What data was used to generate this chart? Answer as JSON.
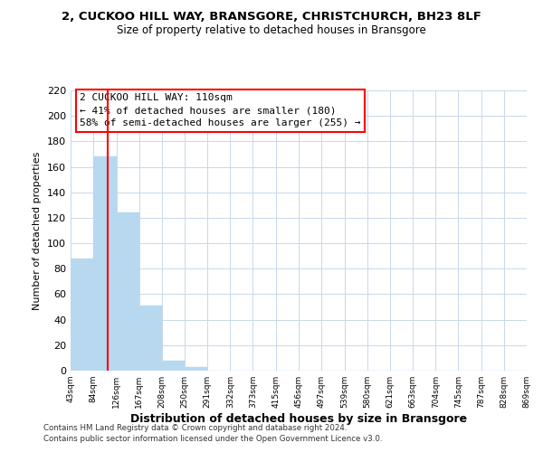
{
  "title": "2, CUCKOO HILL WAY, BRANSGORE, CHRISTCHURCH, BH23 8LF",
  "subtitle": "Size of property relative to detached houses in Bransgore",
  "xlabel": "Distribution of detached houses by size in Bransgore",
  "ylabel": "Number of detached properties",
  "bar_edges": [
    43,
    84,
    126,
    167,
    208,
    250,
    291,
    332,
    373,
    415,
    456,
    497,
    539,
    580,
    621,
    663,
    704,
    745,
    787,
    828,
    869
  ],
  "bar_heights": [
    88,
    168,
    124,
    51,
    8,
    3,
    0,
    0,
    0,
    0,
    0,
    0,
    0,
    0,
    0,
    0,
    0,
    0,
    0,
    0
  ],
  "bar_color": "#b8d8f0",
  "bar_edge_color": "#b8d8f0",
  "property_line_x": 110,
  "property_line_color": "red",
  "ylim": [
    0,
    220
  ],
  "yticks": [
    0,
    20,
    40,
    60,
    80,
    100,
    120,
    140,
    160,
    180,
    200,
    220
  ],
  "xtick_labels": [
    "43sqm",
    "84sqm",
    "126sqm",
    "167sqm",
    "208sqm",
    "250sqm",
    "291sqm",
    "332sqm",
    "373sqm",
    "415sqm",
    "456sqm",
    "497sqm",
    "539sqm",
    "580sqm",
    "621sqm",
    "663sqm",
    "704sqm",
    "745sqm",
    "787sqm",
    "828sqm",
    "869sqm"
  ],
  "annotation_title": "2 CUCKOO HILL WAY: 110sqm",
  "annotation_line1": "← 41% of detached houses are smaller (180)",
  "annotation_line2": "58% of semi-detached houses are larger (255) →",
  "footer_line1": "Contains HM Land Registry data © Crown copyright and database right 2024.",
  "footer_line2": "Contains public sector information licensed under the Open Government Licence v3.0.",
  "background_color": "#ffffff",
  "grid_color": "#c8d8e8"
}
